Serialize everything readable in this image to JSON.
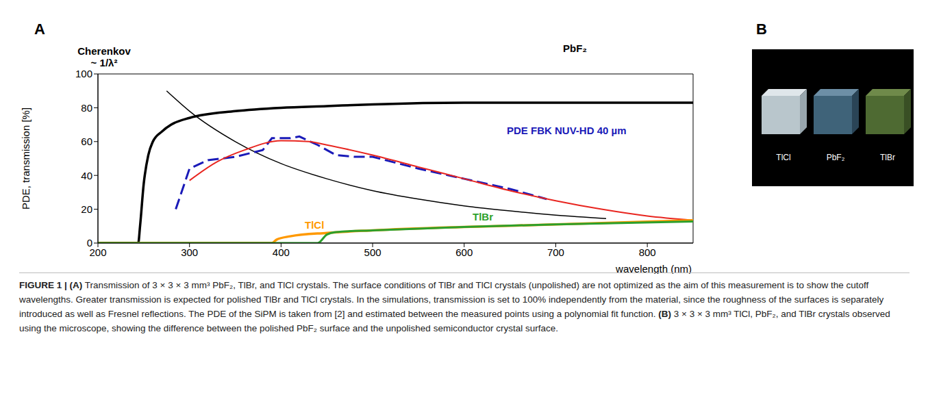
{
  "chart_data": {
    "type": "line",
    "x_label": "wavelength (nm)",
    "y_label": "PDE, transmission [%]",
    "xlim": [
      200,
      850
    ],
    "xticks": [
      200,
      300,
      400,
      500,
      600,
      700,
      800
    ],
    "ylim": [
      0,
      100
    ],
    "yticks": [
      0,
      20,
      40,
      60,
      80,
      100
    ],
    "grid": false,
    "series": [
      {
        "name": "PbF₂",
        "color": "#000000",
        "line_style": "solid",
        "x": [
          200,
          244,
          246,
          250,
          255,
          260,
          270,
          280,
          300,
          350,
          400,
          450,
          500,
          600,
          700,
          850
        ],
        "values": [
          0,
          0,
          10,
          35,
          52,
          60,
          66,
          70,
          74,
          78,
          80,
          81,
          82,
          83,
          83,
          83
        ]
      },
      {
        "name": "Cherenkov\n~ 1/λ²",
        "color": "#000000",
        "line_style": "solid",
        "x": [
          275,
          300,
          350,
          400,
          450,
          500,
          550,
          600,
          650,
          700,
          755
        ],
        "values": [
          90,
          78,
          60,
          47,
          38,
          31,
          26,
          22,
          19,
          16.5,
          14.5
        ]
      },
      {
        "name": "PDE FBK NUV-HD 40 µm",
        "color": "#1a1ab8",
        "line_style": "dashed",
        "x": [
          285,
          300,
          320,
          350,
          380,
          390,
          410,
          420,
          440,
          460,
          480,
          500,
          550,
          600,
          650,
          690
        ],
        "values": [
          20,
          44,
          49,
          51,
          55,
          62,
          62,
          63,
          58,
          52,
          51,
          51,
          44,
          38,
          32,
          26
        ]
      },
      {
        "color": "#e8251f",
        "line_style": "solid",
        "x": [
          300,
          330,
          360,
          400,
          430,
          450,
          500,
          550,
          600,
          650,
          700,
          750,
          800,
          850
        ],
        "values": [
          37,
          48,
          55,
          60.5,
          60,
          58,
          52,
          45,
          38,
          31,
          25,
          20,
          16,
          13.5
        ]
      },
      {
        "name": "TlCl",
        "color": "#ff9900",
        "line_style": "solid",
        "x": [
          200,
          390,
          395,
          410,
          450,
          500,
          600,
          700,
          850
        ],
        "values": [
          0,
          0,
          2,
          4,
          6,
          7.5,
          9.5,
          11,
          13.5
        ]
      },
      {
        "name": "TlBr",
        "color": "#2ca02c",
        "line_style": "solid",
        "x": [
          200,
          440,
          450,
          460,
          500,
          600,
          700,
          850
        ],
        "values": [
          0,
          0,
          5,
          6.5,
          7.5,
          9.5,
          11,
          12.8
        ]
      }
    ]
  },
  "panels": [
    "A",
    "B"
  ],
  "photo": {
    "labels": [
      "TlCl",
      "PbF₂",
      "TlBr"
    ]
  },
  "caption": {
    "figure": "FIGURE 1 |",
    "parts": [
      {
        "panel": "(A)",
        "text": "Transmission of 3 × 3 × 3 mm³ PbF₂, TlBr, and TlCl crystals. The surface conditions of TlBr and TlCl crystals (unpolished) are not optimized as the aim of this measurement is to show the cutoff wavelengths. Greater transmission is expected for polished TlBr and TlCl crystals. In the simulations, transmission is set to 100% independently from the material, since the roughness of the surfaces is separately introduced as well as Fresnel reflections. The PDE of the SiPM is taken from [2] and estimated between the measured points using a polynomial fit function."
      },
      {
        "panel": "(B)",
        "text": "3 × 3 × 3 mm³ TlCl, PbF₂, and TlBr crystals observed using the microscope, showing the difference between the polished PbF₂ surface and the unpolished semiconductor crystal surface."
      }
    ]
  }
}
